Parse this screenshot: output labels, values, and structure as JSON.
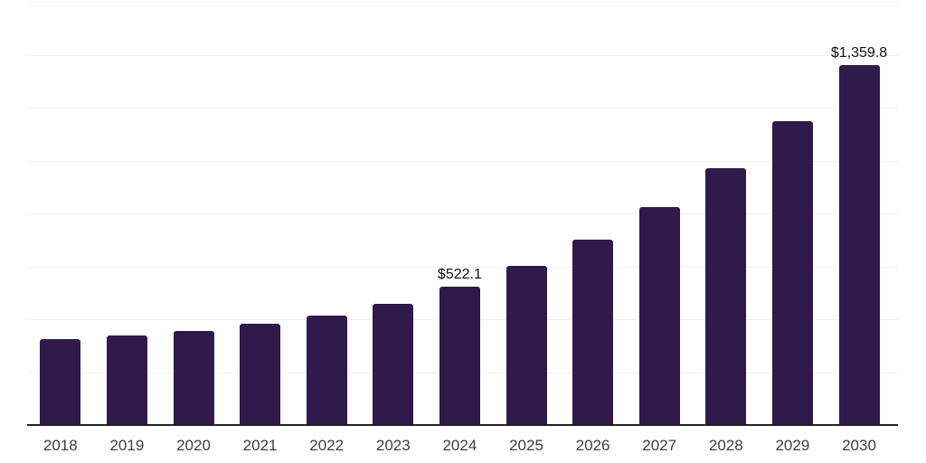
{
  "chart_data": {
    "type": "bar",
    "title": "",
    "xlabel": "",
    "ylabel": "",
    "categories": [
      "2018",
      "2019",
      "2020",
      "2021",
      "2022",
      "2023",
      "2024",
      "2025",
      "2026",
      "2027",
      "2028",
      "2029",
      "2030"
    ],
    "values": [
      325,
      338,
      356,
      383,
      414,
      458,
      522.1,
      602,
      701,
      824,
      971,
      1149,
      1359.8
    ],
    "value_prefix": "$",
    "annotations": [
      {
        "index": 6,
        "category": "2024",
        "text": "$522.1"
      },
      {
        "index": 12,
        "category": "2030",
        "text": "$1,359.8"
      }
    ],
    "ylim": [
      0,
      1600
    ],
    "gridline_step": 200,
    "grid": "horizontal",
    "legend": "none",
    "y_axis_labels_visible": false,
    "colors": {
      "bar": "#301a4b",
      "axis_line": "#212121",
      "gridline": "#f0f0f4",
      "category_label": "#3e3e3e",
      "value_label": "#111111",
      "background": "#ffffff"
    }
  }
}
